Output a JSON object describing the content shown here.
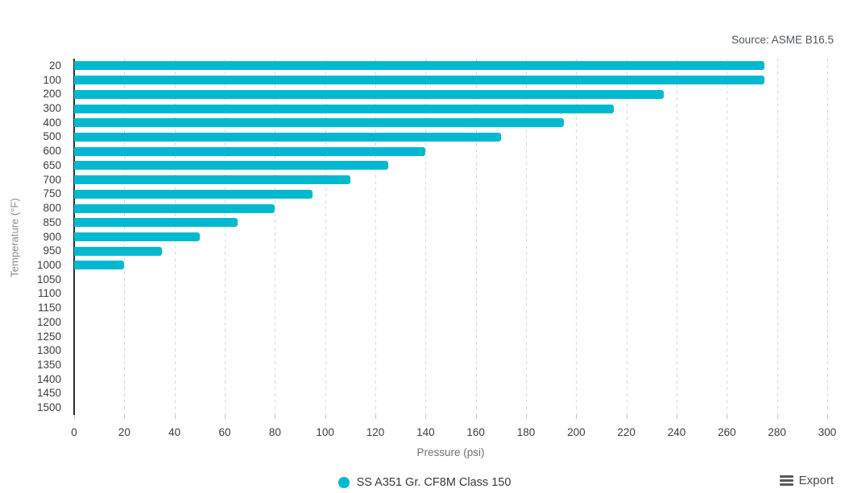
{
  "source_note": "Source: ASME B16.5",
  "legend": {
    "label": "SS A351 Gr. CF8M Class 150",
    "marker_color": "#00b9d1"
  },
  "export_button": {
    "label": "Export",
    "icon": "hamburger-menu-icon"
  },
  "colors": {
    "bar": "#00b9d1",
    "axis_line": "#2d2d2d",
    "gridline": "#dadada",
    "tick_label": "#3d3d3d",
    "axis_title": "#8b8b8b",
    "source_text": "#50555b"
  },
  "chart_data": {
    "type": "bar",
    "orientation": "horizontal",
    "title": "",
    "xlabel": "Pressure (psi)",
    "ylabel": "Temperature (°F)",
    "categories": [
      "20",
      "100",
      "200",
      "300",
      "400",
      "500",
      "600",
      "650",
      "700",
      "750",
      "800",
      "850",
      "900",
      "950",
      "1000",
      "1050",
      "1100",
      "1150",
      "1200",
      "1250",
      "1300",
      "1350",
      "1400",
      "1450",
      "1500"
    ],
    "series": [
      {
        "name": "SS A351 Gr. CF8M Class 150",
        "color": "#00b9d1",
        "values": [
          275,
          275,
          235,
          215,
          195,
          170,
          140,
          125,
          110,
          95,
          80,
          65,
          50,
          35,
          20,
          0,
          0,
          0,
          0,
          0,
          0,
          0,
          0,
          0,
          0
        ]
      }
    ],
    "xlim": [
      0,
      300
    ],
    "xtick_step": 20,
    "grid": "vertical-dashed",
    "legend_position": "bottom-center"
  }
}
